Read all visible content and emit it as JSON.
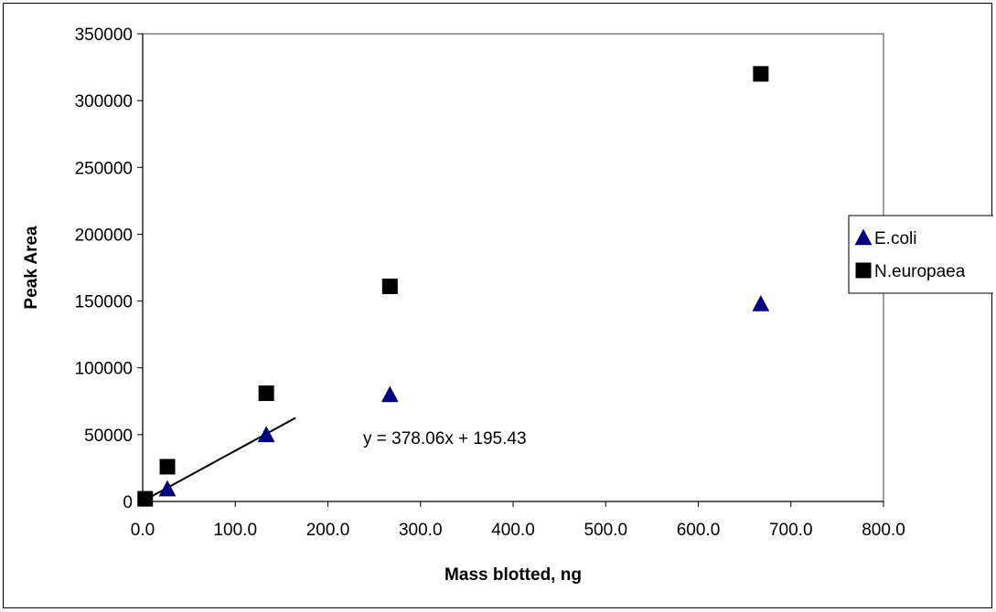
{
  "chart_data": {
    "type": "scatter",
    "title": "",
    "xlabel": "Mass blotted, ng",
    "ylabel": "Peak Area",
    "xlim": [
      0,
      800
    ],
    "ylim": [
      0,
      350000
    ],
    "x_ticks": [
      "0.0",
      "100.0",
      "200.0",
      "300.0",
      "400.0",
      "500.0",
      "600.0",
      "700.0",
      "800.0"
    ],
    "y_ticks": [
      "0",
      "50000",
      "100000",
      "150000",
      "200000",
      "250000",
      "300000",
      "350000"
    ],
    "grid": false,
    "legend_position": "right",
    "series": [
      {
        "name": "E.coli",
        "marker": "triangle",
        "color": "#000080",
        "points": [
          [
            26.7,
            9500
          ],
          [
            133.5,
            50000
          ],
          [
            267,
            80000
          ],
          [
            667.5,
            148000
          ]
        ]
      },
      {
        "name": "N.europaea",
        "marker": "square",
        "color": "#000000",
        "points": [
          [
            2.7,
            2000
          ],
          [
            26.7,
            26000
          ],
          [
            133.5,
            81000
          ],
          [
            267,
            161000
          ],
          [
            667.5,
            320000
          ]
        ]
      }
    ],
    "trendline": {
      "series": "E.coli",
      "equation": "y = 378.06x + 195.43",
      "slope": 378.06,
      "intercept": 195.43,
      "x_range": [
        0,
        165
      ]
    }
  }
}
